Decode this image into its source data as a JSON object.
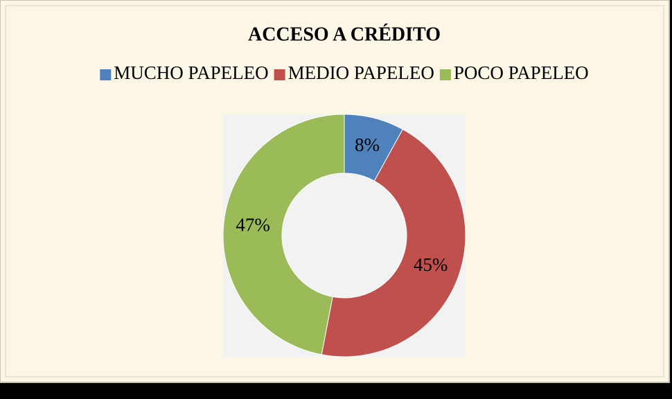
{
  "chart_data": {
    "type": "pie",
    "donut": true,
    "title": "ACCESO A CRÉDITO",
    "categories": [
      "MUCHO PAPELEO",
      "MEDIO PAPELEO",
      "POCO PAPELEO"
    ],
    "values": [
      8,
      45,
      47
    ],
    "value_labels": [
      "8%",
      "45%",
      "47%"
    ],
    "colors": [
      "#4f81bd",
      "#c0504d",
      "#9bbb59"
    ],
    "legend": "top"
  }
}
